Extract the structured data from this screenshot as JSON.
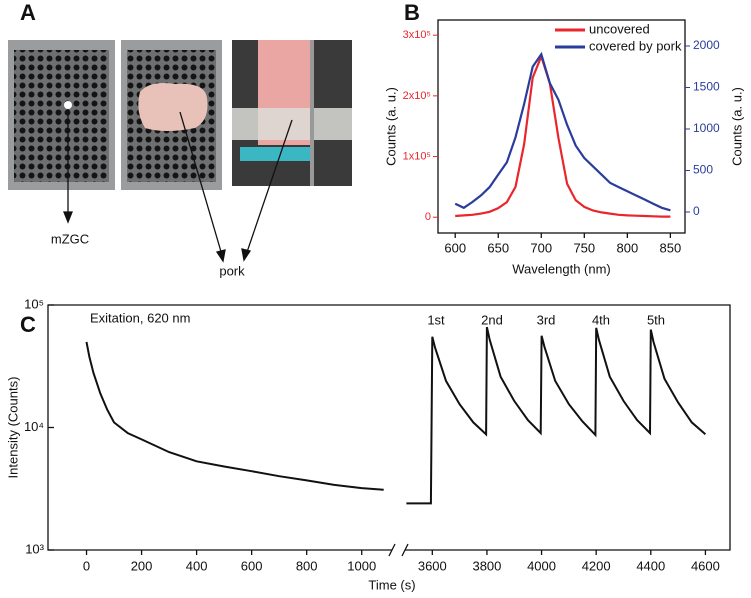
{
  "panel_labels": [
    "A",
    "B",
    "C"
  ],
  "photo_labels": [
    "mZGC",
    "pork"
  ],
  "chart_data": [
    {
      "type": "line",
      "xlabel": "Wavelength (nm)",
      "ylabel": "Counts (a. u.)",
      "y2label": "Counts (a. u.)",
      "x": [
        600,
        610,
        620,
        630,
        640,
        650,
        660,
        670,
        680,
        690,
        700,
        710,
        720,
        730,
        740,
        750,
        760,
        770,
        780,
        790,
        800,
        810,
        820,
        830,
        840,
        850
      ],
      "series": [
        {
          "name": "uncovered",
          "color": "#e8262b",
          "values": [
            2000,
            3000,
            4000,
            6000,
            9000,
            15000,
            25000,
            50000,
            120000,
            230000,
            265000,
            220000,
            130000,
            55000,
            28000,
            17000,
            11000,
            8000,
            6000,
            4000,
            3000,
            2500,
            2000,
            1500,
            1000,
            1000
          ]
        },
        {
          "name": "covered by pork",
          "color": "#2a3d9c",
          "axis": "y2",
          "values": [
            100,
            50,
            120,
            200,
            300,
            450,
            600,
            900,
            1300,
            1750,
            1900,
            1550,
            1350,
            1050,
            800,
            650,
            550,
            450,
            350,
            300,
            250,
            200,
            150,
            100,
            50,
            20
          ]
        }
      ],
      "xlim": [
        580,
        867
      ],
      "xticks": [
        600,
        650,
        700,
        750,
        800,
        850
      ],
      "ylim": [
        -26000,
        325000
      ],
      "yticks": [
        0,
        {
          "value": 100000,
          "label": "1x10⁵"
        },
        {
          "value": 200000,
          "label": "2x10⁵"
        },
        {
          "value": 300000,
          "label": "3x10⁵"
        }
      ],
      "y2lim": [
        -253,
        2313
      ],
      "y2ticks": [
        0,
        500,
        1000,
        1500,
        2000
      ],
      "axis_colors": {
        "y": "#e8262b",
        "y2": "#2a3d9c"
      },
      "legend": "upper-right"
    },
    {
      "type": "line",
      "xlabel": "Time (s)",
      "ylabel": "Intensity (Counts)",
      "log_y": true,
      "annotations": [
        "Exitation,  620 nm",
        "1st",
        "2nd",
        "3rd",
        "4th",
        "5th"
      ],
      "x": [
        0,
        10,
        25,
        50,
        75,
        100,
        150,
        200,
        300,
        400,
        500,
        600,
        700,
        800,
        900,
        1000,
        1080,
        2000,
        3505,
        3595,
        3600,
        3610,
        3650,
        3700,
        3750,
        3797,
        3800,
        3810,
        3850,
        3900,
        3950,
        3997,
        4000,
        4010,
        4050,
        4100,
        4150,
        4197,
        4200,
        4210,
        4250,
        4300,
        4350,
        4397,
        4400,
        4410,
        4450,
        4500,
        4550,
        4600
      ],
      "series": [
        {
          "name": null,
          "color": "#111111",
          "values": [
            50000,
            38000,
            28000,
            19000,
            14000,
            11000,
            9000,
            8000,
            6300,
            5300,
            4800,
            4400,
            4000,
            3700,
            3400,
            3200,
            3100,
            null,
            2400,
            2400,
            55000,
            45000,
            24000,
            15500,
            11000,
            8800,
            66000,
            52000,
            26000,
            16500,
            11500,
            9000,
            56000,
            46000,
            24000,
            15500,
            11200,
            8700,
            65000,
            52000,
            26000,
            16500,
            11500,
            9000,
            63000,
            50000,
            25000,
            16000,
            11000,
            8800
          ]
        }
      ],
      "x_segments": [
        {
          "xlim": [
            -140,
            1110
          ],
          "xticks": [
            0,
            200,
            400,
            600,
            800,
            1000
          ]
        },
        {
          "xlim": [
            3500,
            4690
          ],
          "xticks": [
            3600,
            3800,
            4000,
            4200,
            4400,
            4600
          ]
        }
      ],
      "ylim": [
        1000,
        100000
      ],
      "yticks": [
        {
          "value": 1000,
          "label": "10³"
        },
        {
          "value": 10000,
          "label": "10⁴"
        },
        {
          "value": 100000,
          "label": "10⁵"
        }
      ]
    }
  ]
}
